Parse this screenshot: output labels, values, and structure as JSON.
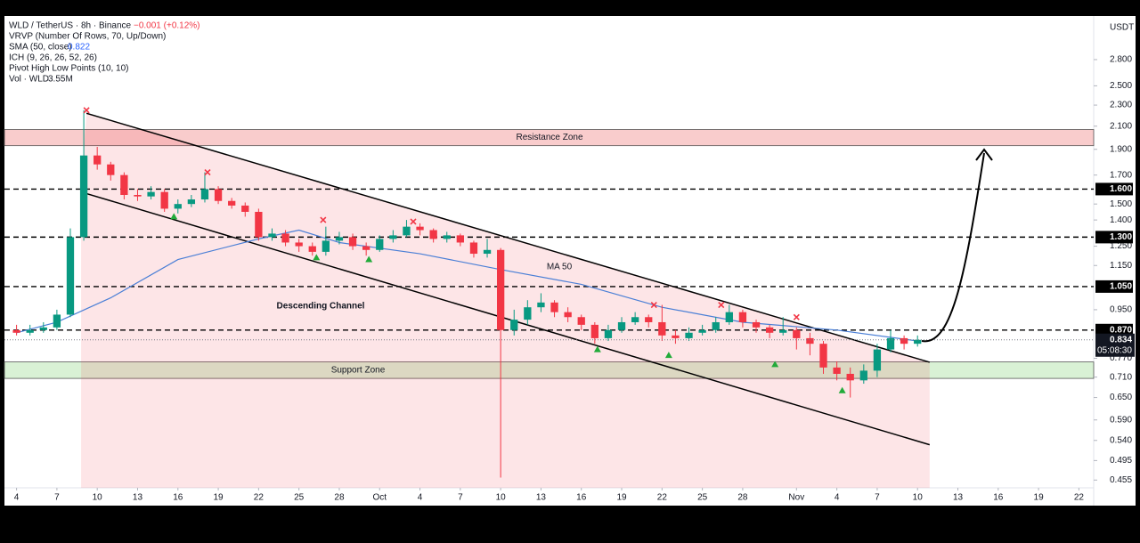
{
  "chart_data": {
    "type": "candlestick",
    "legend": {
      "symbol": "WLD / TetherUS · 8h · Binance",
      "change": "−0.001 (+0.12%)",
      "vrvp": "VRVP (Number Of Rows, 70, Up/Down)",
      "sma": "SMA (50, close)",
      "sma_value": "0.822",
      "ich": "ICH (9, 26, 26, 52, 26)",
      "pivot": "Pivot High Low Points (10, 10)",
      "vol": "Vol · WLD",
      "vol_value": "3.55M"
    },
    "currency": "USDT",
    "log_scale": true,
    "xlim": [
      -0.9,
      80.1
    ],
    "ylim": [
      0.44,
      3.38
    ],
    "xticks": [
      {
        "value": 0,
        "label": "4"
      },
      {
        "value": 3,
        "label": "7"
      },
      {
        "value": 6,
        "label": "10"
      },
      {
        "value": 9,
        "label": "13"
      },
      {
        "value": 12,
        "label": "16"
      },
      {
        "value": 15,
        "label": "19"
      },
      {
        "value": 18,
        "label": "22"
      },
      {
        "value": 21,
        "label": "25"
      },
      {
        "value": 24,
        "label": "28"
      },
      {
        "value": 27,
        "label": "Oct"
      },
      {
        "value": 30,
        "label": "4"
      },
      {
        "value": 33,
        "label": "7"
      },
      {
        "value": 36,
        "label": "10"
      },
      {
        "value": 39,
        "label": "13"
      },
      {
        "value": 42,
        "label": "16"
      },
      {
        "value": 45,
        "label": "19"
      },
      {
        "value": 48,
        "label": "22"
      },
      {
        "value": 51,
        "label": "25"
      },
      {
        "value": 54,
        "label": "28"
      },
      {
        "value": 58,
        "label": "Nov"
      },
      {
        "value": 61,
        "label": "4"
      },
      {
        "value": 64,
        "label": "7"
      },
      {
        "value": 67,
        "label": "10"
      },
      {
        "value": 70,
        "label": "13"
      },
      {
        "value": 73,
        "label": "16"
      },
      {
        "value": 76,
        "label": "19"
      },
      {
        "value": 79,
        "label": "22"
      }
    ],
    "yticks": [
      {
        "value": 2.8,
        "label": "2.800"
      },
      {
        "value": 2.5,
        "label": "2.500"
      },
      {
        "value": 2.3,
        "label": "2.300"
      },
      {
        "value": 2.1,
        "label": "2.100"
      },
      {
        "value": 1.9,
        "label": "1.900"
      },
      {
        "value": 1.7,
        "label": "1.700"
      },
      {
        "value": 1.5,
        "label": "1.500"
      },
      {
        "value": 1.4,
        "label": "1.400"
      },
      {
        "value": 1.25,
        "label": "1.250"
      },
      {
        "value": 1.15,
        "label": "1.150"
      },
      {
        "value": 0.95,
        "label": "0.950"
      },
      {
        "value": 0.77,
        "label": "0.770"
      },
      {
        "value": 0.71,
        "label": "0.710"
      },
      {
        "value": 0.65,
        "label": "0.650"
      },
      {
        "value": 0.59,
        "label": "0.590"
      },
      {
        "value": 0.54,
        "label": "0.540"
      },
      {
        "value": 0.495,
        "label": "0.495"
      },
      {
        "value": 0.455,
        "label": "0.455"
      }
    ],
    "levels": [
      {
        "value": 1.6,
        "label": "1.600"
      },
      {
        "value": 1.3,
        "label": "1.300"
      },
      {
        "value": 1.05,
        "label": "1.050"
      },
      {
        "value": 0.87,
        "label": "0.870"
      }
    ],
    "last_price": 0.834,
    "countdown": "05:08:30",
    "zones": [
      {
        "label": "Resistance Zone",
        "range": [
          1.93,
          2.07
        ],
        "color": "#f4a3a3"
      },
      {
        "label": "Support Zone",
        "range": [
          0.706,
          0.758
        ],
        "color": "#b9e6b3"
      }
    ],
    "channel": {
      "label": "Descending Channel",
      "upper": [
        [
          5.2,
          2.22
        ],
        [
          67.9,
          0.757
        ]
      ],
      "lower": [
        [
          4.8,
          1.58
        ],
        [
          67.9,
          0.53
        ]
      ]
    },
    "ma": {
      "name": "MA 50",
      "color": "#4a7fd6",
      "x": [
        0,
        3,
        7,
        12,
        18,
        21,
        24,
        30,
        36,
        42,
        48,
        54,
        61,
        67
      ],
      "values": [
        0.86,
        0.9,
        1.0,
        1.18,
        1.29,
        1.34,
        1.27,
        1.21,
        1.13,
        1.06,
        0.96,
        0.9,
        0.87,
        0.83
      ]
    },
    "pivots": {
      "highs": {
        "x": [
          5.2,
          14.2,
          22.8,
          29.5,
          47.4,
          52.4,
          58
        ],
        "values": [
          2.25,
          1.72,
          1.4,
          1.39,
          0.97,
          0.97,
          0.92
        ]
      },
      "lows": {
        "x": [
          11.7,
          22.3,
          26.2,
          43.2,
          48.5,
          56.4,
          61.4
        ],
        "values": [
          1.42,
          1.19,
          1.18,
          0.8,
          0.78,
          0.75,
          0.67
        ]
      }
    },
    "up_color": "#089981",
    "down_color": "#f23645",
    "x": [
      0,
      1,
      2,
      3,
      4,
      5,
      6,
      7,
      8,
      9,
      10,
      11,
      12,
      13,
      14,
      15,
      16,
      17,
      18,
      19,
      20,
      21,
      22,
      23,
      24,
      25,
      26,
      27,
      28,
      29,
      30,
      31,
      32,
      33,
      34,
      35,
      36,
      37,
      38,
      39,
      40,
      41,
      42,
      43,
      44,
      45,
      46,
      47,
      48,
      49,
      50,
      51,
      52,
      53,
      54,
      55,
      56,
      57,
      58,
      59,
      60,
      61,
      62,
      63,
      64,
      65,
      66,
      67
    ],
    "open": [
      0.87,
      0.86,
      0.87,
      0.88,
      0.93,
      1.3,
      1.85,
      1.78,
      1.7,
      1.56,
      1.55,
      1.58,
      1.47,
      1.5,
      1.53,
      1.6,
      1.52,
      1.49,
      1.45,
      1.3,
      1.32,
      1.27,
      1.25,
      1.22,
      1.28,
      1.3,
      1.25,
      1.23,
      1.29,
      1.31,
      1.36,
      1.34,
      1.29,
      1.31,
      1.27,
      1.21,
      1.23,
      0.87,
      0.91,
      0.96,
      0.98,
      0.94,
      0.92,
      0.89,
      0.84,
      0.87,
      0.9,
      0.92,
      0.9,
      0.85,
      0.84,
      0.86,
      0.87,
      0.9,
      0.94,
      0.9,
      0.88,
      0.86,
      0.87,
      0.84,
      0.82,
      0.74,
      0.72,
      0.7,
      0.73,
      0.8,
      0.84,
      0.82
    ],
    "high": [
      0.89,
      0.89,
      0.9,
      0.95,
      1.35,
      2.25,
      1.92,
      1.8,
      1.72,
      1.6,
      1.62,
      1.6,
      1.53,
      1.56,
      1.72,
      1.62,
      1.54,
      1.51,
      1.47,
      1.35,
      1.34,
      1.29,
      1.27,
      1.36,
      1.33,
      1.32,
      1.27,
      1.31,
      1.34,
      1.4,
      1.38,
      1.35,
      1.33,
      1.32,
      1.28,
      1.29,
      1.24,
      0.95,
      0.99,
      1.02,
      0.99,
      0.96,
      0.93,
      0.9,
      0.89,
      0.92,
      0.94,
      0.93,
      0.97,
      0.87,
      0.88,
      0.89,
      0.92,
      0.97,
      0.95,
      0.91,
      0.89,
      0.92,
      0.88,
      0.86,
      0.83,
      0.76,
      0.74,
      0.75,
      0.82,
      0.87,
      0.85,
      0.85
    ],
    "low": [
      0.85,
      0.85,
      0.86,
      0.87,
      0.92,
      1.28,
      1.74,
      1.66,
      1.53,
      1.52,
      1.53,
      1.45,
      1.44,
      1.48,
      1.51,
      1.5,
      1.47,
      1.42,
      1.28,
      1.28,
      1.25,
      1.22,
      1.2,
      1.2,
      1.26,
      1.23,
      1.2,
      1.22,
      1.27,
      1.3,
      1.31,
      1.27,
      1.27,
      1.25,
      1.19,
      1.19,
      0.46,
      0.85,
      0.89,
      0.94,
      0.92,
      0.9,
      0.87,
      0.82,
      0.83,
      0.86,
      0.89,
      0.88,
      0.83,
      0.82,
      0.83,
      0.85,
      0.86,
      0.89,
      0.88,
      0.86,
      0.84,
      0.85,
      0.8,
      0.78,
      0.72,
      0.7,
      0.65,
      0.69,
      0.71,
      0.79,
      0.8,
      0.81
    ],
    "close": [
      0.86,
      0.87,
      0.88,
      0.93,
      1.3,
      1.85,
      1.78,
      1.7,
      1.56,
      1.55,
      1.58,
      1.47,
      1.5,
      1.53,
      1.6,
      1.52,
      1.49,
      1.45,
      1.3,
      1.32,
      1.27,
      1.25,
      1.22,
      1.28,
      1.3,
      1.25,
      1.23,
      1.29,
      1.31,
      1.36,
      1.34,
      1.29,
      1.31,
      1.27,
      1.21,
      1.23,
      0.87,
      0.91,
      0.96,
      0.98,
      0.94,
      0.92,
      0.89,
      0.84,
      0.87,
      0.9,
      0.92,
      0.9,
      0.85,
      0.84,
      0.86,
      0.87,
      0.9,
      0.94,
      0.9,
      0.88,
      0.86,
      0.87,
      0.84,
      0.82,
      0.74,
      0.72,
      0.7,
      0.73,
      0.8,
      0.84,
      0.82,
      0.834
    ]
  }
}
